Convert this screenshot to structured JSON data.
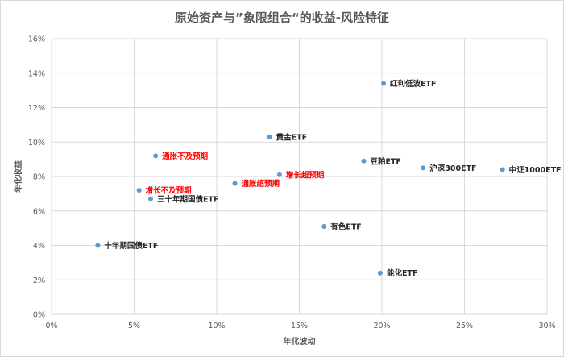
{
  "chart_data": {
    "type": "scatter",
    "title": "原始资产与”象限组合“的收益-风险特征",
    "xlabel": "年化波动",
    "ylabel": "年化收益",
    "xlim": [
      0,
      0.3
    ],
    "ylim": [
      0,
      0.16
    ],
    "x_ticks": [
      "0%",
      "5%",
      "10%",
      "15%",
      "20%",
      "25%",
      "30%"
    ],
    "y_ticks": [
      "0%",
      "2%",
      "4%",
      "6%",
      "8%",
      "10%",
      "12%",
      "14%",
      "16%"
    ],
    "grid": true,
    "point_color": "#5b9bd5",
    "label_colors": {
      "asset": "#262626",
      "portfolio": "#ff0000"
    },
    "points": [
      {
        "name": "红利低波ETF",
        "x": 0.201,
        "y": 0.134,
        "group": "asset"
      },
      {
        "name": "黄金ETF",
        "x": 0.132,
        "y": 0.103,
        "group": "asset"
      },
      {
        "name": "通胀不及预期",
        "x": 0.063,
        "y": 0.092,
        "group": "portfolio"
      },
      {
        "name": "豆粕ETF",
        "x": 0.189,
        "y": 0.089,
        "group": "asset"
      },
      {
        "name": "沪深300ETF",
        "x": 0.225,
        "y": 0.085,
        "group": "asset"
      },
      {
        "name": "中证1000ETF",
        "x": 0.273,
        "y": 0.084,
        "group": "asset"
      },
      {
        "name": "增长超预期",
        "x": 0.138,
        "y": 0.081,
        "group": "portfolio"
      },
      {
        "name": "通胀超预期",
        "x": 0.111,
        "y": 0.076,
        "group": "portfolio"
      },
      {
        "name": "增长不及预期",
        "x": 0.053,
        "y": 0.072,
        "group": "portfolio"
      },
      {
        "name": "三十年期国债ETF",
        "x": 0.06,
        "y": 0.067,
        "group": "asset"
      },
      {
        "name": "有色ETF",
        "x": 0.165,
        "y": 0.051,
        "group": "asset"
      },
      {
        "name": "十年期国债ETF",
        "x": 0.028,
        "y": 0.04,
        "group": "asset"
      },
      {
        "name": "能化ETF",
        "x": 0.199,
        "y": 0.024,
        "group": "asset"
      }
    ]
  }
}
